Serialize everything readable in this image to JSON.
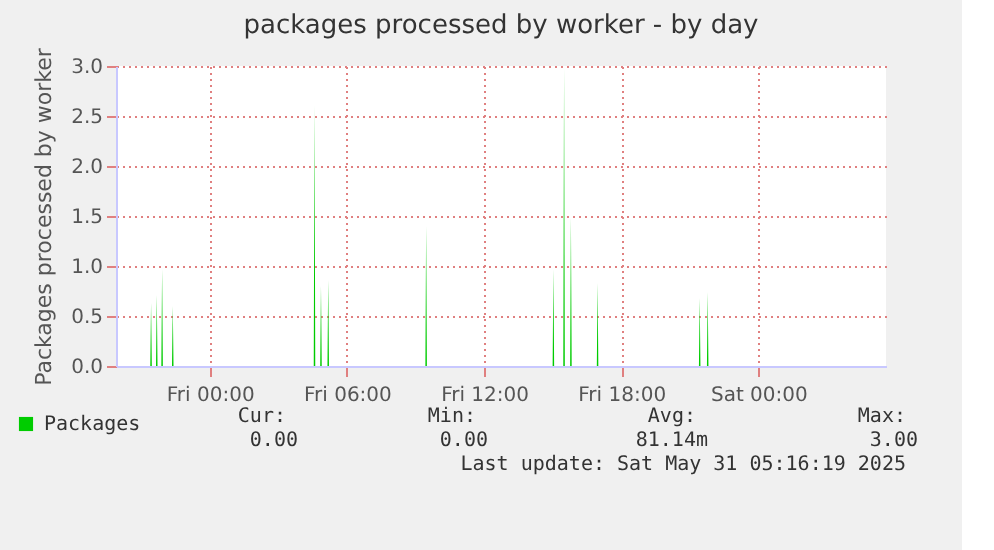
{
  "chart_data": {
    "type": "area",
    "title": "packages processed by worker - by day",
    "ylabel": "Packages processed by worker",
    "xlim": [
      "2025-05-29T19:54",
      "2025-05-31T05:35"
    ],
    "xticks": [
      {
        "value": "2025-05-30T00:00",
        "label": "Fri 00:00"
      },
      {
        "value": "2025-05-30T06:00",
        "label": "Fri 06:00"
      },
      {
        "value": "2025-05-30T12:00",
        "label": "Fri 12:00"
      },
      {
        "value": "2025-05-30T18:00",
        "label": "Fri 18:00"
      },
      {
        "value": "2025-05-31T00:00",
        "label": "Sat 00:00"
      }
    ],
    "ylim": [
      0,
      3
    ],
    "yticks": [
      {
        "value": 0,
        "label": "0.0"
      },
      0.5,
      {
        "value": 1,
        "label": "1.0"
      },
      1.5,
      {
        "value": 2,
        "label": "2.0"
      },
      2.5,
      {
        "value": 3,
        "label": "3.0"
      }
    ],
    "grid": true,
    "legend": "bottom left",
    "series": [
      {
        "name": "Packages",
        "color": "#00cc00",
        "x": [
          "2025-05-29T21:24",
          "2025-05-29T21:26",
          "2025-05-29T21:28",
          "2025-05-29T21:39",
          "2025-05-29T21:41",
          "2025-05-29T21:43",
          "2025-05-29T21:53",
          "2025-05-29T21:55",
          "2025-05-29T21:57",
          "2025-05-29T22:21",
          "2025-05-29T22:23",
          "2025-05-29T22:25",
          "2025-05-30T04:33",
          "2025-05-30T04:35",
          "2025-05-30T04:37",
          "2025-05-30T04:50",
          "2025-05-30T04:52",
          "2025-05-30T04:54",
          "2025-05-30T05:09",
          "2025-05-30T05:11",
          "2025-05-30T05:13",
          "2025-05-30T09:26",
          "2025-05-30T09:28",
          "2025-05-30T09:30",
          "2025-05-30T15:00",
          "2025-05-30T15:02",
          "2025-05-30T15:04",
          "2025-05-30T15:28",
          "2025-05-30T15:30",
          "2025-05-30T15:32",
          "2025-05-30T15:46",
          "2025-05-30T15:48",
          "2025-05-30T15:50",
          "2025-05-30T16:56",
          "2025-05-30T16:58",
          "2025-05-30T17:00",
          "2025-05-30T21:24",
          "2025-05-30T21:26",
          "2025-05-30T21:28",
          "2025-05-30T21:45",
          "2025-05-30T21:47",
          "2025-05-30T21:49"
        ],
        "values": [
          0,
          0.63,
          0,
          0,
          0.71,
          0,
          0,
          0.97,
          0,
          0,
          0.6,
          0,
          0,
          2.61,
          0,
          0,
          0.8,
          0,
          0,
          0.86,
          0,
          0,
          1.4,
          0,
          0,
          0.97,
          0,
          0,
          2.98,
          0,
          0,
          1.49,
          0,
          0,
          0.83,
          0,
          0,
          0.68,
          0,
          0,
          0.74,
          0
        ]
      }
    ],
    "annotations": [
      "Cur:",
      "Min:",
      "Avg:",
      "Max:",
      "0.00",
      "0.00",
      "81.14m",
      "3.00",
      "Last update: Sat May 31 05:16:19 2025"
    ]
  }
}
